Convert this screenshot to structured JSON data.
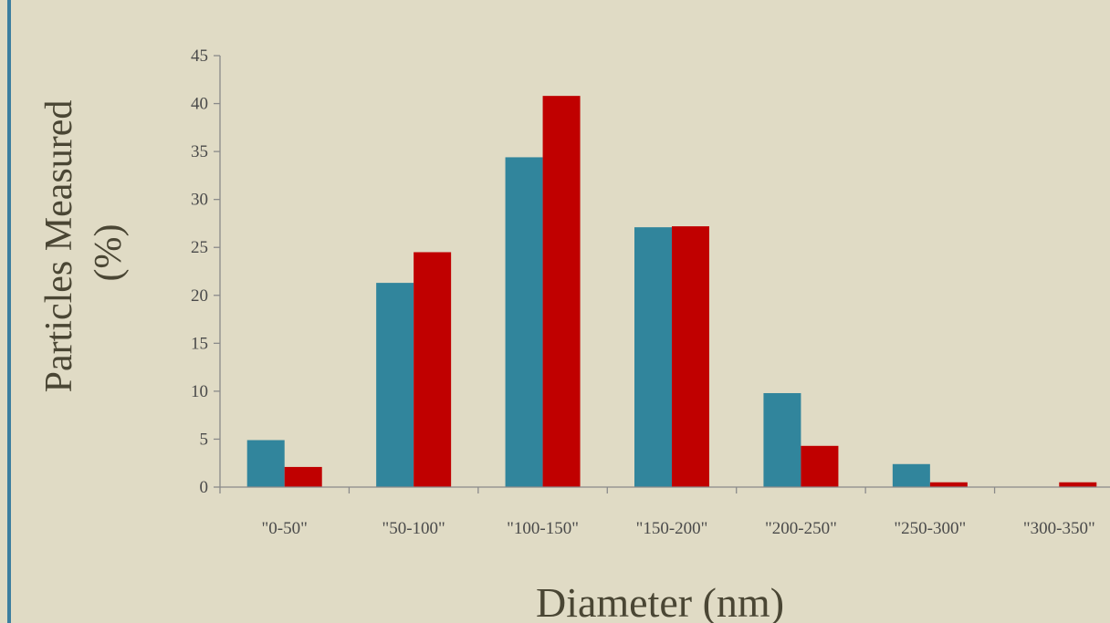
{
  "chart_data": {
    "type": "bar",
    "title": "",
    "xlabel": "Diameter (nm)",
    "ylabel_line1": "Particles Measured",
    "ylabel_line2": "(%)",
    "categories": [
      "\"0-50\"",
      "\"50-100\"",
      "\"100-150\"",
      "\"150-200\"",
      "\"200-250\"",
      "\"250-300\"",
      "\"300-350\""
    ],
    "series": [
      {
        "values": [
          4.9,
          21.3,
          34.4,
          27.1,
          9.8,
          2.4,
          0
        ],
        "color": "#31859c"
      },
      {
        "values": [
          2.1,
          24.5,
          40.8,
          27.2,
          4.3,
          0.5,
          0.5
        ],
        "color": "#c00000"
      }
    ],
    "ylim": [
      0,
      45
    ],
    "yticks": [
      0,
      5,
      10,
      15,
      20,
      25,
      30,
      35,
      40,
      45
    ],
    "grid": false,
    "legend": "none"
  },
  "colors": {
    "background": "#e0dbc5",
    "accent_rule": "#3c7e9f",
    "axis": "#8a8a8a"
  }
}
